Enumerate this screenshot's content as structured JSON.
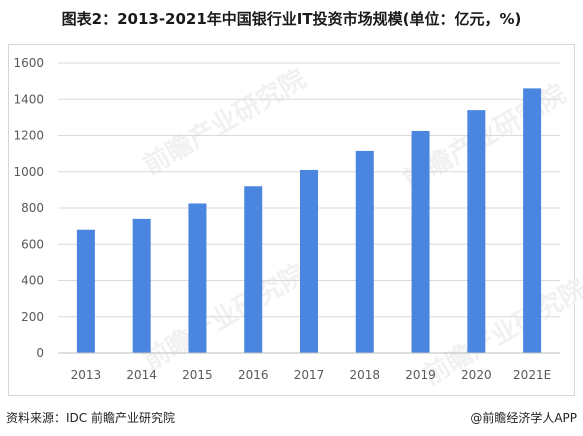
{
  "header": {
    "title": "图表2：2013-2021年中国银行业IT投资市场规模(单位：亿元，%)"
  },
  "watermark": {
    "text": "前瞻产业研究院"
  },
  "footer": {
    "source": "资料来源：IDC 前瞻产业研究院",
    "brand": "@前瞻经济学人APP"
  },
  "colors": {
    "bar": "#4a86e0",
    "grid": "#d9d9d9",
    "axis": "#bfbfbf"
  },
  "chart_data": {
    "type": "bar",
    "title": "图表2：2013-2021年中国银行业IT投资市场规模(单位：亿元，%)",
    "categories": [
      "2013",
      "2014",
      "2015",
      "2016",
      "2017",
      "2018",
      "2019",
      "2020",
      "2021E"
    ],
    "values": [
      680,
      740,
      825,
      920,
      1010,
      1115,
      1225,
      1340,
      1460
    ],
    "xlabel": "",
    "ylabel": "",
    "ylim": [
      0,
      1600
    ],
    "yticks": [
      0,
      200,
      400,
      600,
      800,
      1000,
      1200,
      1400,
      1600
    ],
    "grid": true,
    "legend": "none"
  }
}
